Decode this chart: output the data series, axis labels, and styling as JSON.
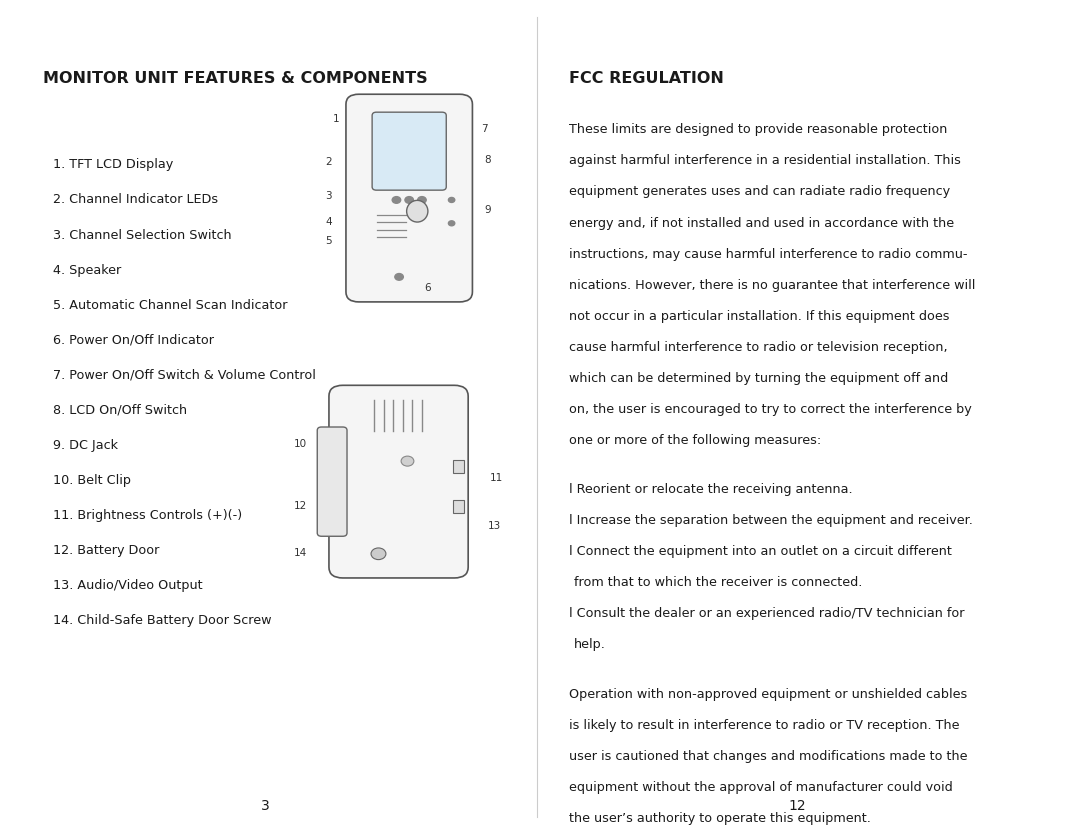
{
  "left_title": "MONITOR UNIT FEATURES & COMPONENTS",
  "right_title": "FCC REGULATION",
  "components": [
    "1. TFT LCD Display",
    "2. Channel Indicator LEDs",
    "3. Channel Selection Switch",
    "4. Speaker",
    "5. Automatic Channel Scan Indicator",
    "6. Power On/Off Indicator",
    "7. Power On/Off Switch & Volume Control",
    "8. LCD On/Off Switch",
    "9. DC Jack",
    "10. Belt Clip",
    "11. Brightness Controls (+)(-)",
    "12. Battery Door",
    "13. Audio/Video Output",
    "14. Child-Safe Battery Door Screw"
  ],
  "p1_lines": [
    "These limits are designed to provide reasonable protection",
    "against harmful interference in a residential installation. This",
    "equipment generates uses and can radiate radio frequency",
    "energy and, if not installed and used in accordance with the",
    "instructions, may cause harmful interference to radio commu-",
    "nications. However, there is no guarantee that interference will",
    "not occur in a particular installation. If this equipment does",
    "cause harmful interference to radio or television reception,",
    "which can be determined by turning the equipment off and",
    "on, the user is encouraged to try to correct the interference by",
    "one or more of the following measures:"
  ],
  "bullet_lines": [
    "l Reorient or relocate the receiving antenna.",
    "l Increase the separation between the equipment and receiver.",
    "l Connect the equipment into an outlet on a circuit different",
    "from that to which the receiver is connected.",
    "l Consult the dealer or an experienced radio/TV technician for",
    "help."
  ],
  "p2_lines": [
    "Operation with non-approved equipment or unshielded cables",
    "is likely to result in interference to radio or TV reception. The",
    "user is cautioned that changes and modifications made to the",
    "equipment without the approval of manufacturer could void",
    "the user’s authority to operate this equipment."
  ],
  "page_left": "3",
  "page_right": "12",
  "bg_color": "#ffffff",
  "text_color": "#1a1a1a",
  "title_fontsize": 11.5,
  "body_fontsize": 9.2,
  "divider_color": "#cccccc"
}
